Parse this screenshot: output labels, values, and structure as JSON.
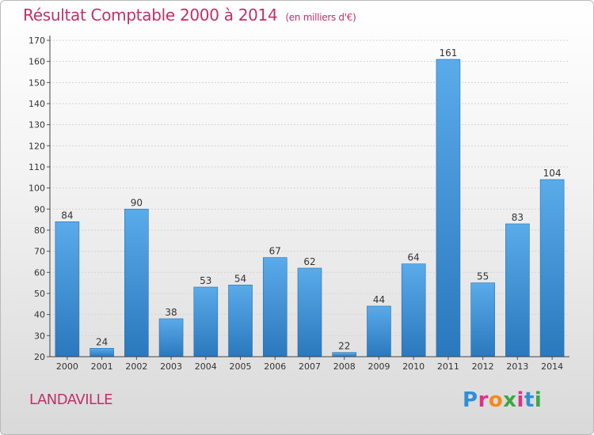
{
  "chart_data": {
    "type": "bar",
    "title": "Résultat Comptable 2000 à 2014",
    "subtitle": "(en milliers d'€)",
    "categories": [
      "2000",
      "2001",
      "2002",
      "2003",
      "2004",
      "2005",
      "2006",
      "2007",
      "2008",
      "2009",
      "2010",
      "2011",
      "2012",
      "2013",
      "2014"
    ],
    "values": [
      84,
      24,
      90,
      38,
      53,
      54,
      67,
      62,
      22,
      44,
      64,
      161,
      55,
      83,
      104
    ],
    "ylim": [
      20,
      170
    ],
    "yticks": [
      20,
      30,
      40,
      50,
      60,
      70,
      80,
      90,
      100,
      110,
      120,
      130,
      140,
      150,
      160,
      170
    ],
    "grid": true,
    "bar_color": "#3a8fd6"
  },
  "footer": {
    "commune": "LANDAVILLE",
    "brand": "Proxiti"
  }
}
